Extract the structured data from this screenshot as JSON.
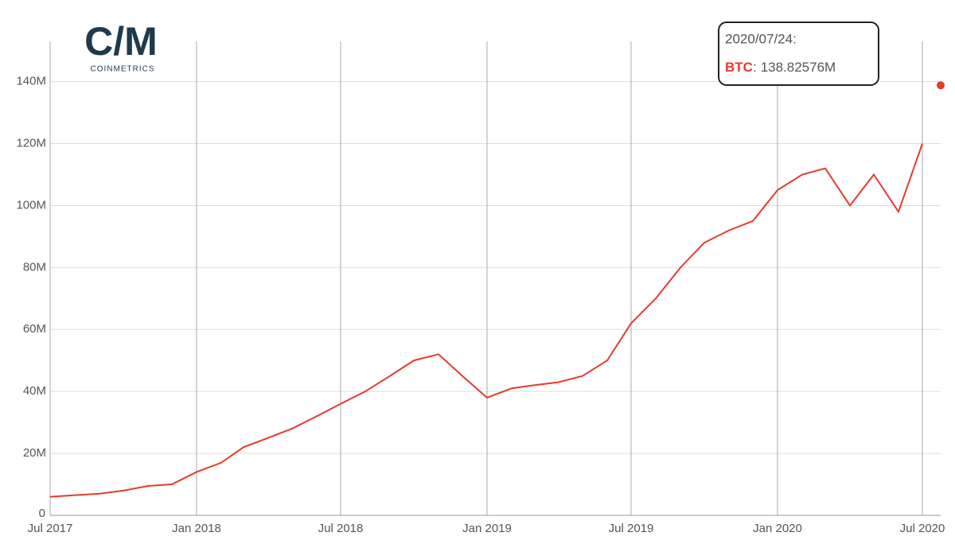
{
  "logo": {
    "mark": "C/M",
    "name": "COINMETRICS"
  },
  "chart_data": {
    "type": "line",
    "x": [
      "2017-07",
      "2017-08",
      "2017-09",
      "2017-10",
      "2017-11",
      "2017-12",
      "2018-01",
      "2018-02",
      "2018-03",
      "2018-04",
      "2018-05",
      "2018-06",
      "2018-07",
      "2018-08",
      "2018-09",
      "2018-10",
      "2018-11",
      "2018-12",
      "2019-01",
      "2019-02",
      "2019-03",
      "2019-04",
      "2019-05",
      "2019-06",
      "2019-07",
      "2019-08",
      "2019-09",
      "2019-10",
      "2019-11",
      "2019-12",
      "2020-01",
      "2020-02",
      "2020-03",
      "2020-04",
      "2020-05",
      "2020-06",
      "2020-07"
    ],
    "series": [
      {
        "name": "BTC",
        "color": "#e8392c",
        "values": [
          6000000,
          6500000,
          7000000,
          8000000,
          9500000,
          10000000,
          14000000,
          17000000,
          22000000,
          25000000,
          28000000,
          32000000,
          36000000,
          40000000,
          45000000,
          50000000,
          52000000,
          45000000,
          38000000,
          41000000,
          42000000,
          43000000,
          45000000,
          50000000,
          62000000,
          70000000,
          80000000,
          88000000,
          92000000,
          95000000,
          105000000,
          110000000,
          112000000,
          100000000,
          110000000,
          98000000,
          120000000
        ]
      }
    ],
    "xlim": [
      "2017-07-01",
      "2020-07-24"
    ],
    "xticks": [
      {
        "value": "2017-07",
        "label": "Jul 2017"
      },
      {
        "value": "2018-01",
        "label": "Jan 2018"
      },
      {
        "value": "2018-07",
        "label": "Jul 2018"
      },
      {
        "value": "2019-01",
        "label": "Jan 2019"
      },
      {
        "value": "2019-07",
        "label": "Jul 2019"
      },
      {
        "value": "2020-01",
        "label": "Jan 2020"
      },
      {
        "value": "2020-07",
        "label": "Jul 2020"
      }
    ],
    "ylim": [
      0,
      153000000
    ],
    "yticks": [
      0,
      {
        "value": 20000000,
        "label": "20M"
      },
      {
        "value": 40000000,
        "label": "40M"
      },
      {
        "value": 60000000,
        "label": "60M"
      },
      {
        "value": 80000000,
        "label": "80M"
      },
      {
        "value": 100000000,
        "label": "100M"
      },
      {
        "value": 120000000,
        "label": "120M"
      },
      {
        "value": 140000000,
        "label": "140M"
      }
    ],
    "grid": true,
    "tooltip": {
      "date_label": "2020/07/24:",
      "x": "2020-07-24",
      "separator": ":",
      "value": 138825760,
      "value_label": "138.82576M"
    }
  }
}
